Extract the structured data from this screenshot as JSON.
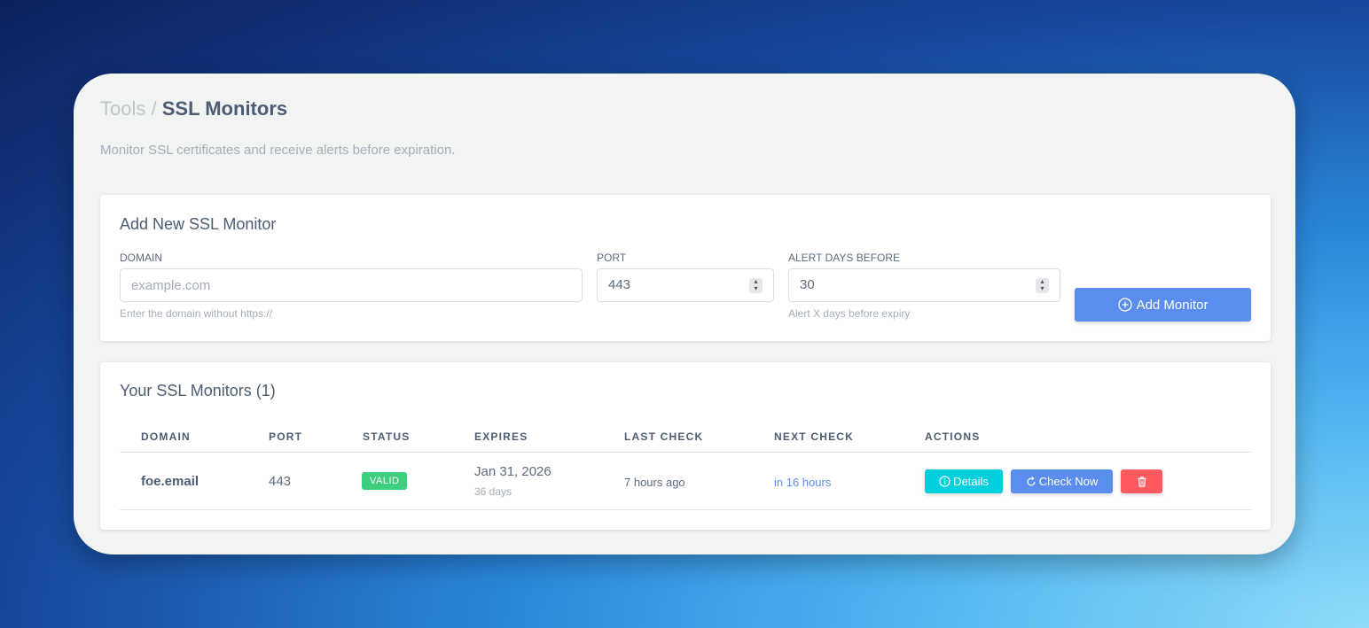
{
  "header": {
    "breadcrumb_parent": "Tools",
    "breadcrumb_separator": "/",
    "title": "SSL Monitors",
    "subtitle": "Monitor SSL certificates and receive alerts before expiration."
  },
  "add_form": {
    "title": "Add New SSL Monitor",
    "domain": {
      "label": "DOMAIN",
      "placeholder": "example.com",
      "value": "",
      "hint": "Enter the domain without https://"
    },
    "port": {
      "label": "PORT",
      "value": "443"
    },
    "alert": {
      "label": "ALERT DAYS BEFORE",
      "value": "30",
      "hint": "Alert X days before expiry"
    },
    "submit_label": "Add Monitor",
    "submit_color": "#5b8def"
  },
  "monitors": {
    "title": "Your SSL Monitors (1)",
    "columns": [
      "DOMAIN",
      "PORT",
      "STATUS",
      "EXPIRES",
      "LAST CHECK",
      "NEXT CHECK",
      "ACTIONS"
    ],
    "rows": [
      {
        "domain": "foe.email",
        "port": "443",
        "status": "VALID",
        "status_color": "#3ecf7e",
        "expires": "Jan 31, 2026",
        "expires_in": "36 days",
        "last_check": "7 hours ago",
        "next_check": "in 16 hours",
        "actions": {
          "details": "Details",
          "check_now": "Check Now"
        }
      }
    ]
  },
  "colors": {
    "details": "#00cfdd",
    "check_now": "#5b8def",
    "delete": "#ff5a5f"
  }
}
